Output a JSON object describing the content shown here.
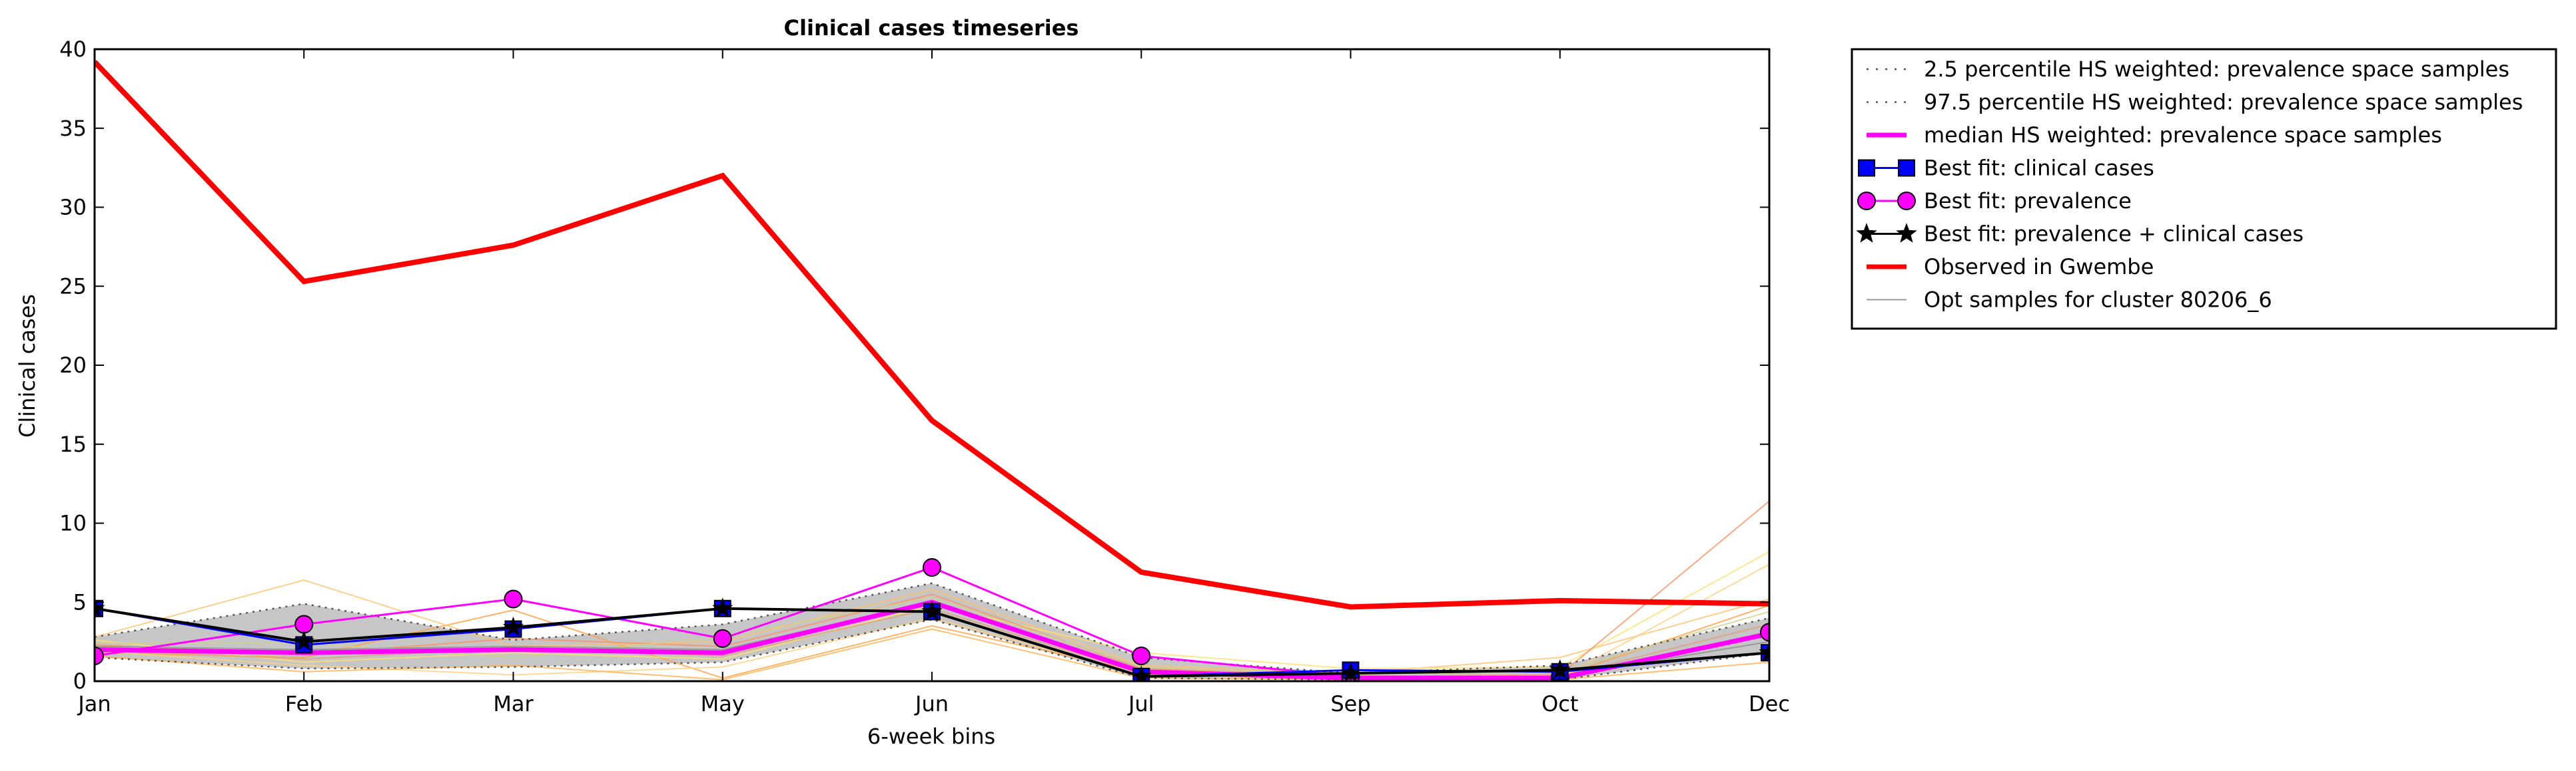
{
  "chart_data": {
    "type": "line",
    "title": "Clinical cases timeseries",
    "xlabel": "6-week bins",
    "ylabel": "Clinical cases",
    "categories": [
      "Jan",
      "Feb",
      "Mar",
      "May",
      "Jun",
      "Jul",
      "Sep",
      "Oct",
      "Dec"
    ],
    "yticks": [
      "0",
      "5",
      "10",
      "15",
      "20",
      "25",
      "30",
      "35",
      "40"
    ],
    "ylim": [
      0,
      40
    ],
    "grid": false,
    "legend_position": "outside-right",
    "series": [
      {
        "name": "2.5 percentile HS weighted: prevalence space samples",
        "color": "#555555",
        "style": "dotted",
        "values": [
          1.5,
          0.8,
          0.9,
          1.2,
          3.9,
          0.2,
          0.1,
          0.1,
          1.8
        ]
      },
      {
        "name": "97.5 percentile HS weighted: prevalence space samples",
        "color": "#555555",
        "style": "dotted",
        "values": [
          2.8,
          4.9,
          2.6,
          3.6,
          6.2,
          1.5,
          0.5,
          1.0,
          4.0
        ]
      },
      {
        "name": "median HS weighted: prevalence space samples",
        "color": "#ff00ff",
        "style": "solid-thick",
        "values": [
          2.0,
          1.8,
          2.0,
          1.8,
          5.0,
          0.6,
          0.2,
          0.2,
          3.0
        ]
      },
      {
        "name": "Best fit: clinical cases",
        "color": "#0000ff",
        "marker": "square",
        "values": [
          4.6,
          2.3,
          3.3,
          4.6,
          4.4,
          0.3,
          0.7,
          0.6,
          1.8
        ]
      },
      {
        "name": "Best fit: prevalence",
        "color": "#ff00ff",
        "marker": "circle",
        "values": [
          1.6,
          3.6,
          5.2,
          2.7,
          7.2,
          1.6,
          0.3,
          0.2,
          3.1
        ]
      },
      {
        "name": "Best fit: prevalence + clinical cases",
        "color": "#000000",
        "marker": "star",
        "values": [
          4.6,
          2.5,
          3.4,
          4.6,
          4.4,
          0.3,
          0.5,
          0.7,
          1.8
        ]
      },
      {
        "name": "Observed in Gwembe",
        "color": "#ff0000",
        "style": "solid-thick",
        "values": [
          39.2,
          25.3,
          27.6,
          32.0,
          16.5,
          6.9,
          4.7,
          5.1,
          4.9
        ]
      },
      {
        "name": "Opt samples for cluster 80206_6",
        "color": "#999999",
        "style": "thin",
        "values": [
          2.2,
          2.0,
          2.2,
          2.0,
          5.0,
          0.5,
          0.2,
          0.3,
          2.5
        ]
      }
    ],
    "sample_lines": [
      {
        "color": "#ffa040",
        "values": [
          1.8,
          1.5,
          4.5,
          0.2,
          3.5,
          0.6,
          0.2,
          0.3,
          4.8
        ]
      },
      {
        "color": "#ffc070",
        "values": [
          2.8,
          6.4,
          2.2,
          2.5,
          5.8,
          1.0,
          0.5,
          1.5,
          5.2
        ]
      },
      {
        "color": "#ffe070",
        "values": [
          2.6,
          1.2,
          1.8,
          1.4,
          4.8,
          1.8,
          0.8,
          0.9,
          8.2
        ]
      },
      {
        "color": "#ffd080",
        "values": [
          1.9,
          1.0,
          0.4,
          0.9,
          4.0,
          0.4,
          0.1,
          0.2,
          7.4
        ]
      },
      {
        "color": "#ff9060",
        "values": [
          2.3,
          1.7,
          2.7,
          2.2,
          5.5,
          0.8,
          0.3,
          0.4,
          11.4
        ]
      },
      {
        "color": "#e0a080",
        "values": [
          2.0,
          1.4,
          2.1,
          1.6,
          4.6,
          0.5,
          0.2,
          0.3,
          3.6
        ]
      },
      {
        "color": "#d0d090",
        "values": [
          2.4,
          2.4,
          1.5,
          2.8,
          5.3,
          0.9,
          0.4,
          0.6,
          4.4
        ]
      },
      {
        "color": "#ffb050",
        "values": [
          1.6,
          0.6,
          1.0,
          0.1,
          3.3,
          0.2,
          0.1,
          0.1,
          1.2
        ]
      }
    ]
  }
}
